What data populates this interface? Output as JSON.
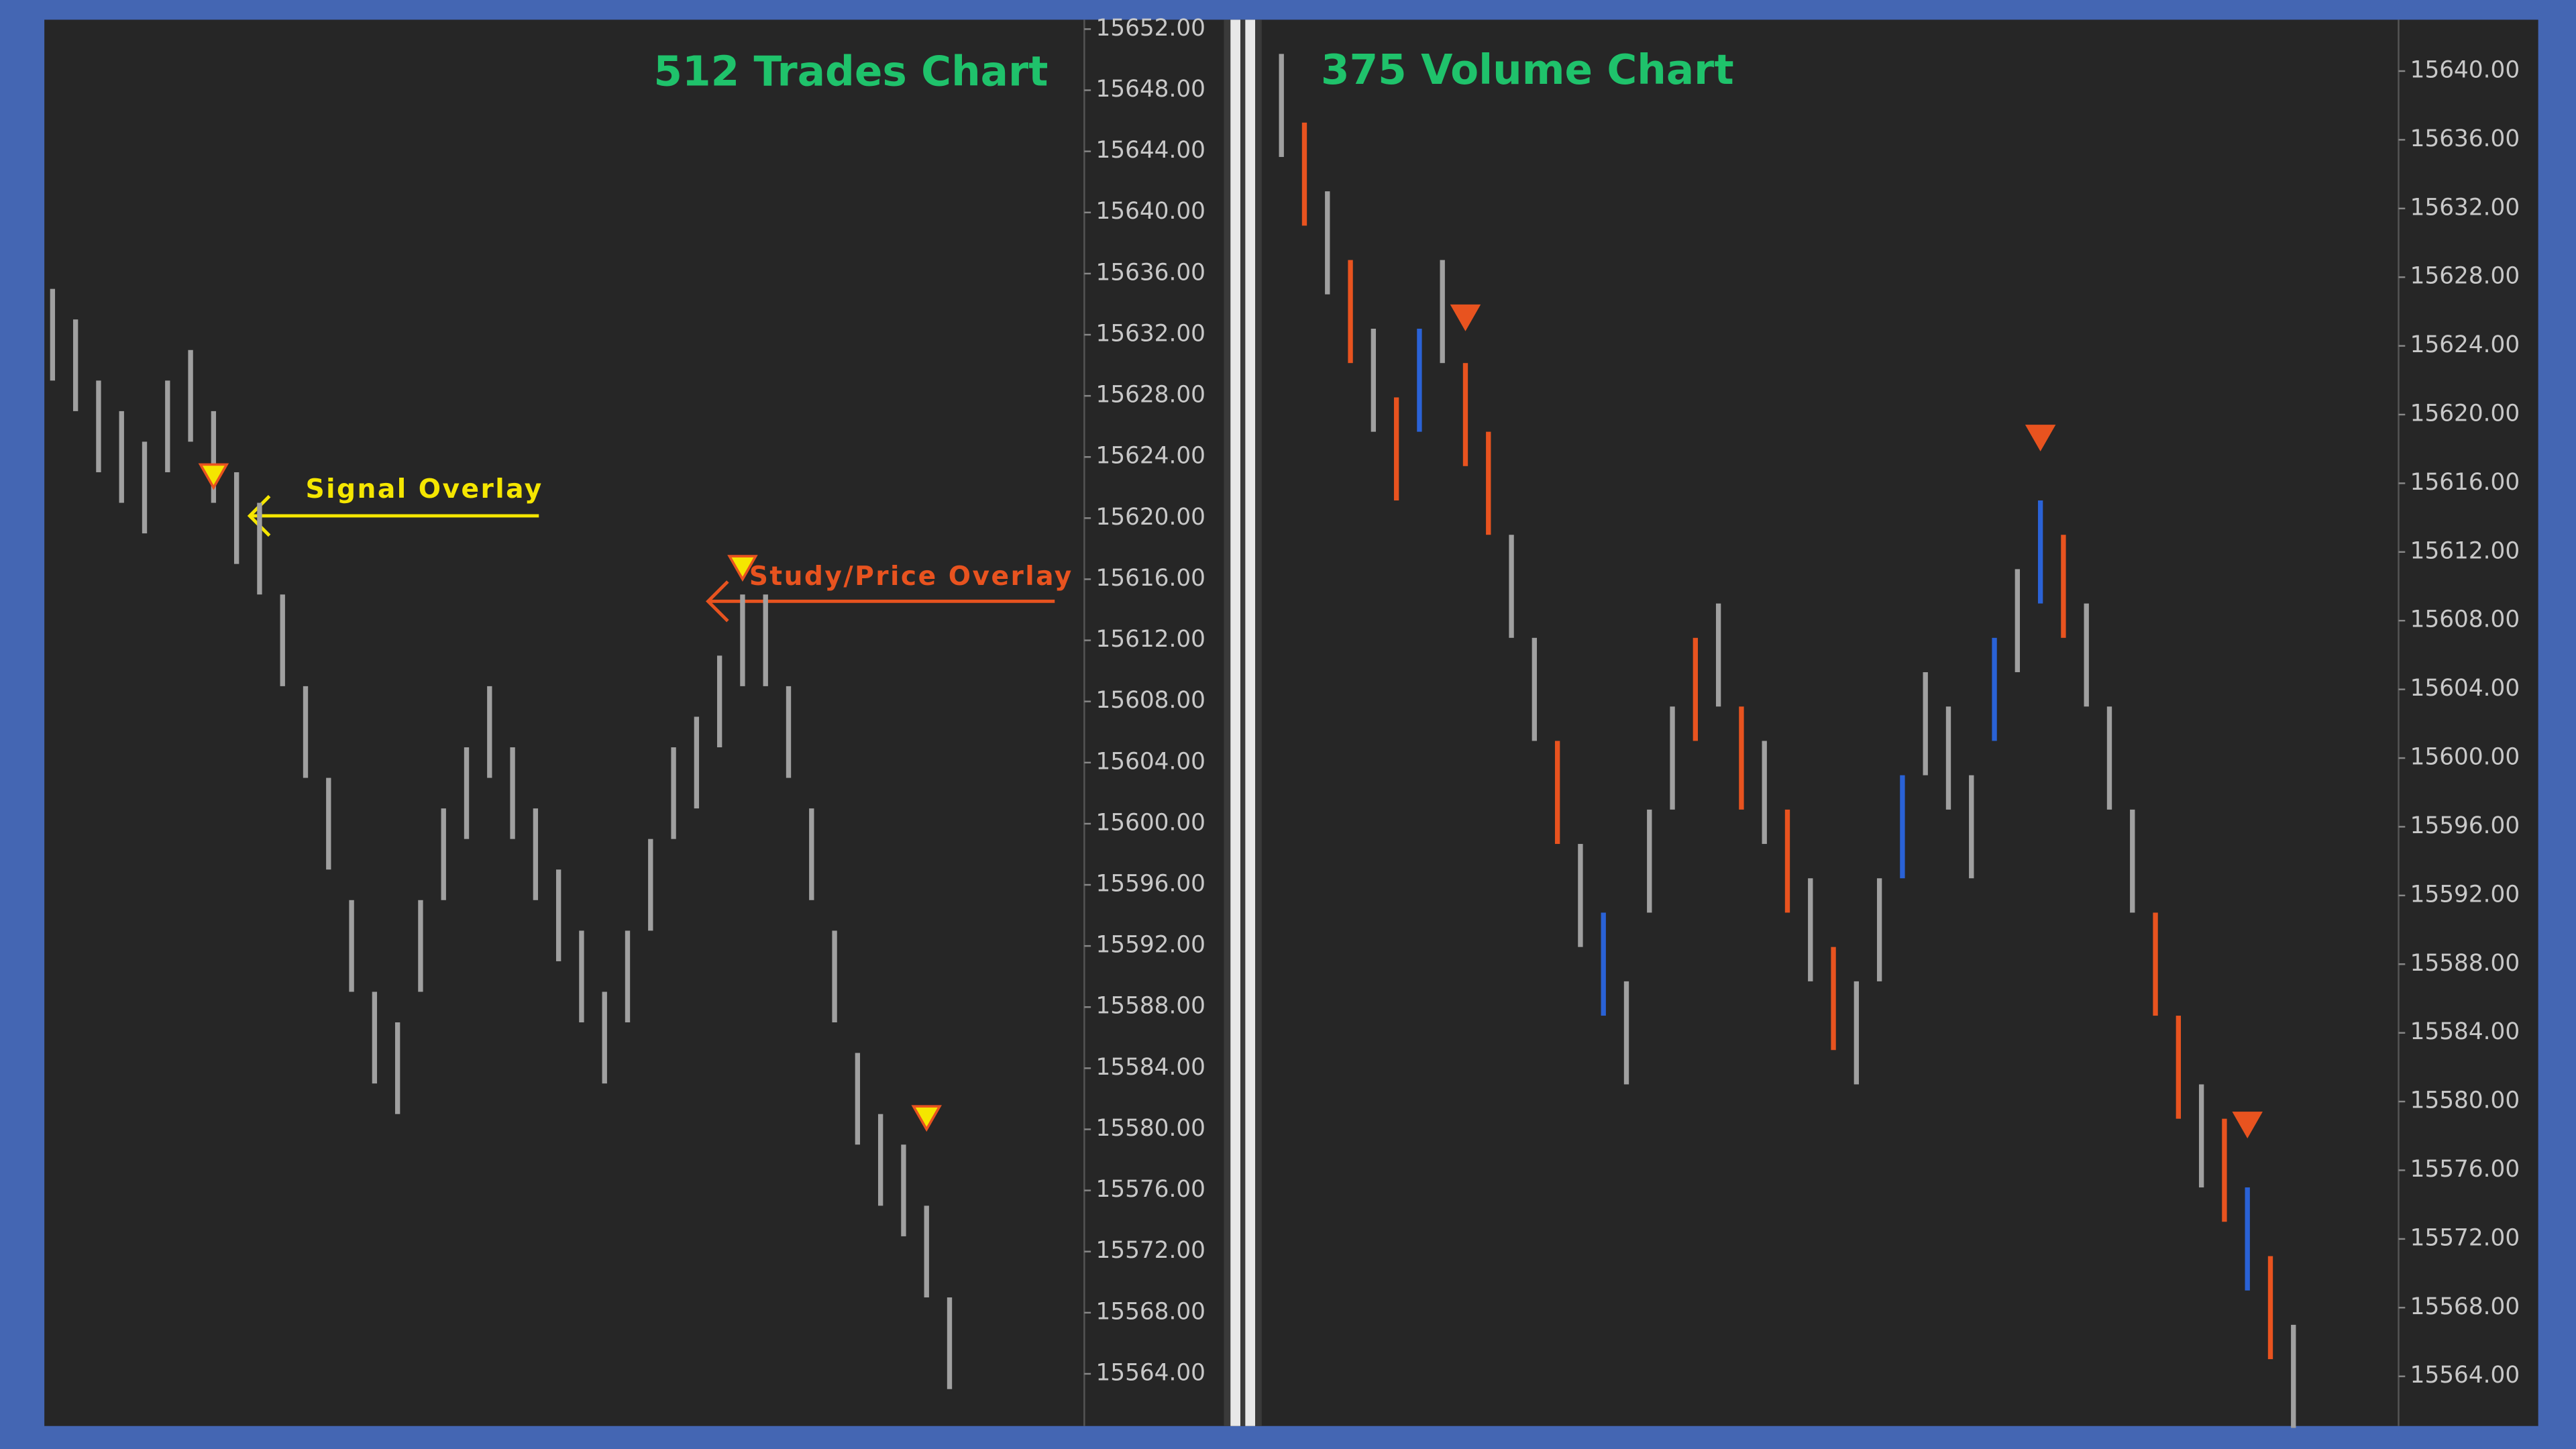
{
  "chart_data": [
    {
      "type": "hlbar",
      "title": "512 Trades Chart",
      "annotations": [
        "Signal Overlay",
        "Study/Price Overlay"
      ],
      "high": [
        15635,
        15633,
        15629,
        15627,
        15625,
        15629,
        15631,
        15627,
        15623,
        15621,
        15615,
        15609,
        15603,
        15595,
        15589,
        15587,
        15595,
        15601,
        15605,
        15609,
        15605,
        15601,
        15597,
        15593,
        15589,
        15593,
        15599,
        15605,
        15607,
        15611,
        15615,
        15615,
        15609,
        15601,
        15593,
        15585,
        15581,
        15579,
        15575,
        15569
      ],
      "low": [
        15629,
        15627,
        15623,
        15621,
        15619,
        15623,
        15625,
        15621,
        15617,
        15615,
        15609,
        15603,
        15597,
        15589,
        15583,
        15581,
        15589,
        15595,
        15599,
        15603,
        15599,
        15595,
        15591,
        15587,
        15583,
        15587,
        15593,
        15599,
        15601,
        15605,
        15609,
        15609,
        15603,
        15595,
        15587,
        15579,
        15575,
        15573,
        15569,
        15563
      ],
      "color": "#a0a0a0",
      "signals": {
        "bars": [
          7,
          30,
          38
        ],
        "values": [
          15622,
          15616,
          15580
        ],
        "color": "#f5e600"
      },
      "ylim": [
        15560.8,
        15652.4
      ],
      "yticks": [
        {
          "value": 15652,
          "label": "15652.00"
        },
        {
          "value": 15648,
          "label": "15648.00"
        },
        {
          "value": 15644,
          "label": "15644.00"
        },
        {
          "value": 15640,
          "label": "15640.00"
        },
        {
          "value": 15636,
          "label": "15636.00"
        },
        {
          "value": 15632,
          "label": "15632.00"
        },
        {
          "value": 15628,
          "label": "15628.00"
        },
        {
          "value": 15624,
          "label": "15624.00"
        },
        {
          "value": 15620,
          "label": "15620.00"
        },
        {
          "value": 15616,
          "label": "15616.00"
        },
        {
          "value": 15612,
          "label": "15612.00"
        },
        {
          "value": 15608,
          "label": "15608.00"
        },
        {
          "value": 15604,
          "label": "15604.00"
        },
        {
          "value": 15600,
          "label": "15600.00"
        },
        {
          "value": 15596,
          "label": "15596.00"
        },
        {
          "value": 15592,
          "label": "15592.00"
        },
        {
          "value": 15588,
          "label": "15588.00"
        },
        {
          "value": 15584,
          "label": "15584.00"
        },
        {
          "value": 15580,
          "label": "15580.00"
        },
        {
          "value": 15576,
          "label": "15576.00"
        },
        {
          "value": 15572,
          "label": "15572.00"
        },
        {
          "value": 15568,
          "label": "15568.00"
        },
        {
          "value": 15564,
          "label": "15564.00"
        }
      ]
    },
    {
      "type": "hlbar",
      "title": "375 Volume Chart",
      "high": [
        15641,
        15637,
        15633,
        15629,
        15625,
        15621,
        15625,
        15629,
        15623,
        15619,
        15613,
        15607,
        15601,
        15595,
        15591,
        15587,
        15597,
        15603,
        15607,
        15609,
        15603,
        15601,
        15597,
        15593,
        15589,
        15587,
        15593,
        15599,
        15605,
        15603,
        15599,
        15607,
        15611,
        15615,
        15613,
        15609,
        15603,
        15597,
        15591,
        15585,
        15581,
        15579,
        15575,
        15571,
        15567
      ],
      "low": [
        15635,
        15631,
        15627,
        15623,
        15619,
        15615,
        15619,
        15623,
        15617,
        15613,
        15607,
        15601,
        15595,
        15589,
        15585,
        15581,
        15591,
        15597,
        15601,
        15603,
        15597,
        15595,
        15591,
        15587,
        15583,
        15581,
        15587,
        15593,
        15599,
        15597,
        15593,
        15601,
        15605,
        15609,
        15607,
        15603,
        15597,
        15591,
        15585,
        15579,
        15575,
        15573,
        15569,
        15565,
        15561
      ],
      "bar_colors": [
        "#a0a0a0",
        "#e8531f",
        "#a0a0a0",
        "#e8531f",
        "#a0a0a0",
        "#e8531f",
        "#2a62d6",
        "#a0a0a0",
        "#e8531f",
        "#e8531f",
        "#a0a0a0",
        "#a0a0a0",
        "#e8531f",
        "#a0a0a0",
        "#2a62d6",
        "#a0a0a0",
        "#a0a0a0",
        "#a0a0a0",
        "#e8531f",
        "#a0a0a0",
        "#e8531f",
        "#a0a0a0",
        "#e8531f",
        "#a0a0a0",
        "#e8531f",
        "#a0a0a0",
        "#a0a0a0",
        "#2a62d6",
        "#a0a0a0",
        "#a0a0a0",
        "#a0a0a0",
        "#2a62d6",
        "#a0a0a0",
        "#2a62d6",
        "#e8531f",
        "#a0a0a0",
        "#a0a0a0",
        "#a0a0a0",
        "#e8531f",
        "#e8531f",
        "#a0a0a0",
        "#e8531f",
        "#2a62d6",
        "#e8531f",
        "#a0a0a0"
      ],
      "signals": {
        "bars": [
          8,
          33,
          42
        ],
        "values": [
          15625,
          15618,
          15578
        ],
        "color": "#e8531f"
      },
      "ylim": [
        15561.3,
        15642.8
      ],
      "yticks": [
        {
          "value": 15640,
          "label": "15640.00"
        },
        {
          "value": 15636,
          "label": "15636.00"
        },
        {
          "value": 15632,
          "label": "15632.00"
        },
        {
          "value": 15628,
          "label": "15628.00"
        },
        {
          "value": 15624,
          "label": "15624.00"
        },
        {
          "value": 15620,
          "label": "15620.00"
        },
        {
          "value": 15616,
          "label": "15616.00"
        },
        {
          "value": 15612,
          "label": "15612.00"
        },
        {
          "value": 15608,
          "label": "15608.00"
        },
        {
          "value": 15604,
          "label": "15604.00"
        },
        {
          "value": 15600,
          "label": "15600.00"
        },
        {
          "value": 15596,
          "label": "15596.00"
        },
        {
          "value": 15592,
          "label": "15592.00"
        },
        {
          "value": 15588,
          "label": "15588.00"
        },
        {
          "value": 15584,
          "label": "15584.00"
        },
        {
          "value": 15580,
          "label": "15580.00"
        },
        {
          "value": 15576,
          "label": "15576.00"
        },
        {
          "value": 15572,
          "label": "15572.00"
        },
        {
          "value": 15568,
          "label": "15568.00"
        },
        {
          "value": 15564,
          "label": "15564.00"
        }
      ]
    }
  ]
}
